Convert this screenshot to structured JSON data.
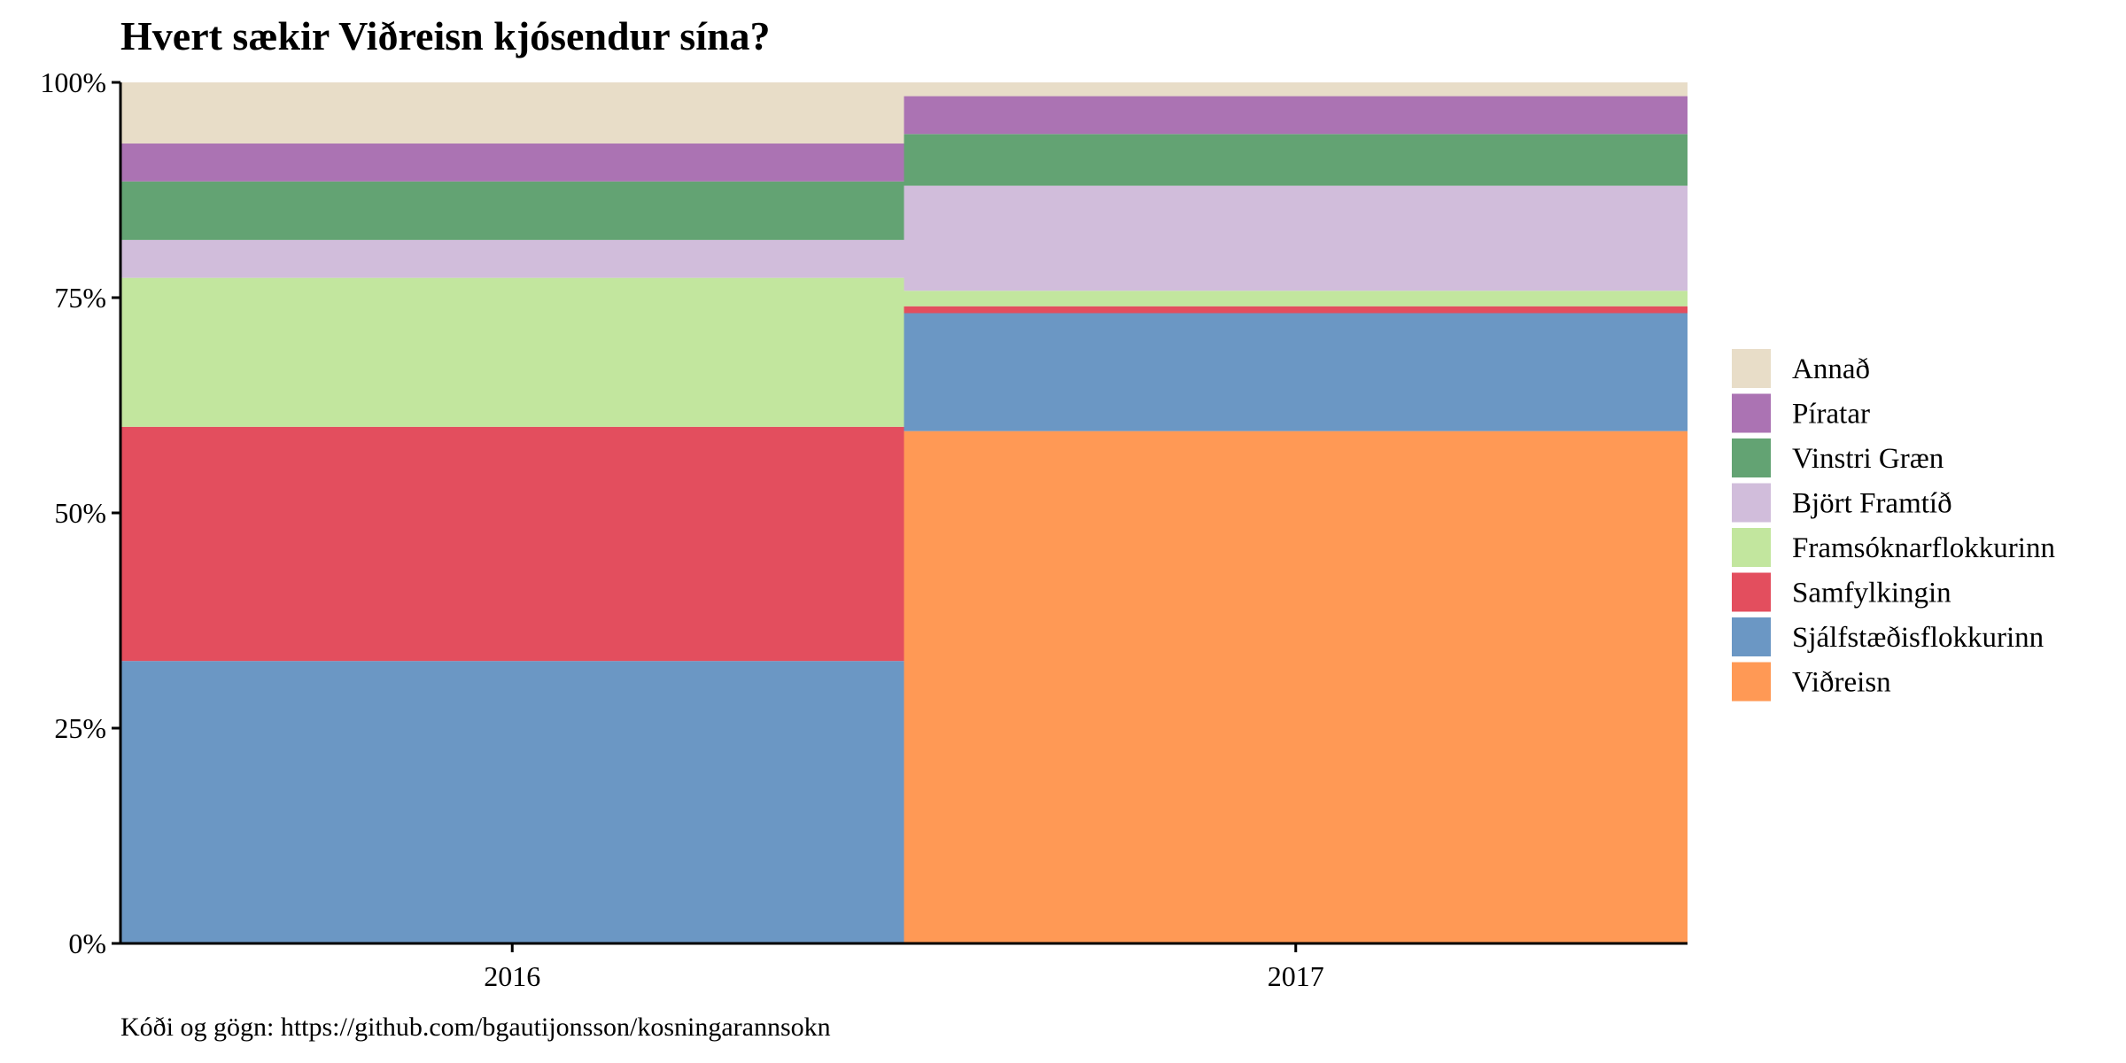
{
  "chart_data": {
    "type": "bar",
    "stacked": true,
    "normalized": true,
    "title": "Hvert sækir Viðreisn kjósendur sína?",
    "caption": "Kóði og gögn: https://github.com/bgautijonsson/kosningarannsokn",
    "xlabel": "",
    "ylabel": "",
    "categories": [
      "2016",
      "2017"
    ],
    "ylim": [
      0,
      1
    ],
    "y_ticks": [
      "0%",
      "25%",
      "50%",
      "75%",
      "100%"
    ],
    "grid": false,
    "legend_position": "right",
    "series": [
      {
        "name": "Viðreisn",
        "color": "#FF9955",
        "values": [
          0.0,
          0.595
        ]
      },
      {
        "name": "Sjálfstæðisflokkurinn",
        "color": "#6B97C4",
        "values": [
          0.328,
          0.137
        ]
      },
      {
        "name": "Samfylkingin",
        "color": "#E34E5E",
        "values": [
          0.272,
          0.008
        ]
      },
      {
        "name": "Framsóknarflokkurinn",
        "color": "#C2E69E",
        "values": [
          0.173,
          0.018
        ]
      },
      {
        "name": "Björt Framtíð",
        "color": "#D1BDDB",
        "values": [
          0.044,
          0.122
        ]
      },
      {
        "name": "Vinstri Græn",
        "color": "#63A373",
        "values": [
          0.068,
          0.06
        ]
      },
      {
        "name": "Píratar",
        "color": "#AB73B3",
        "values": [
          0.044,
          0.044
        ]
      },
      {
        "name": "Annað",
        "color": "#E8DDC8",
        "values": [
          0.071,
          0.016
        ]
      }
    ]
  }
}
